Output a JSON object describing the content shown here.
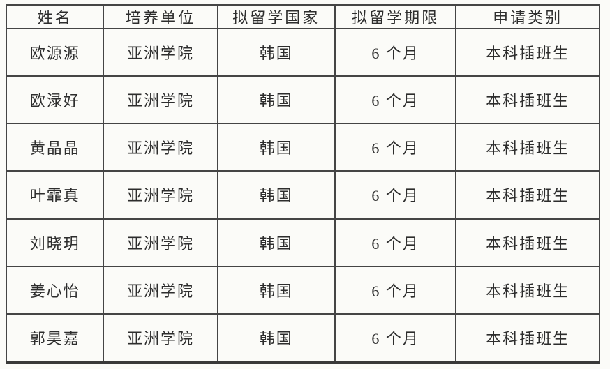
{
  "document": {
    "type": "scanned-table"
  },
  "table": {
    "headers": [
      "姓名",
      "培养单位",
      "拟留学国家",
      "拟留学期限",
      "申请类别"
    ],
    "rows": [
      [
        "欧源源",
        "亚洲学院",
        "韩国",
        "6 个月",
        "本科插班生"
      ],
      [
        "欧渌好",
        "亚洲学院",
        "韩国",
        "6 个月",
        "本科插班生"
      ],
      [
        "黄晶晶",
        "亚洲学院",
        "韩国",
        "6 个月",
        "本科插班生"
      ],
      [
        "叶霏真",
        "亚洲学院",
        "韩国",
        "6 个月",
        "本科插班生"
      ],
      [
        "刘晓玥",
        "亚洲学院",
        "韩国",
        "6 个月",
        "本科插班生"
      ],
      [
        "姜心怡",
        "亚洲学院",
        "韩国",
        "6 个月",
        "本科插班生"
      ],
      [
        "郭昊嘉",
        "亚洲学院",
        "韩国",
        "6 个月",
        "本科插班生"
      ]
    ]
  },
  "colors": {
    "paper": "#fbfbf8",
    "border": "#454545",
    "text": "#2d2d2d"
  }
}
